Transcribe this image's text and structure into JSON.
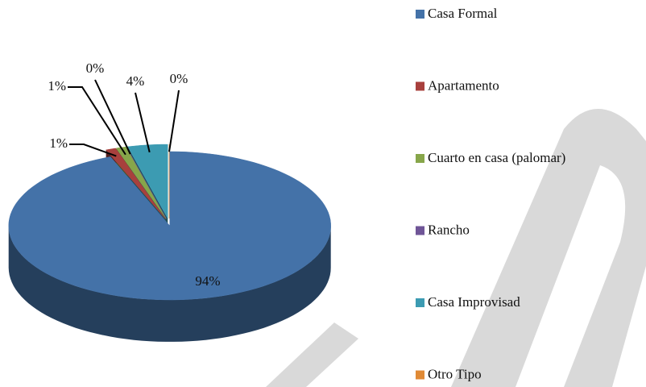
{
  "chart_data": {
    "type": "pie",
    "series": [
      {
        "name": "Casa Formal",
        "color": "#4472a8",
        "values": [
          94
        ],
        "value_labels": [
          "94%"
        ]
      },
      {
        "name": "Apartamento",
        "color": "#a8403d",
        "values": [
          1
        ],
        "value_labels": [
          "1%"
        ]
      },
      {
        "name": "Cuarto en casa (palomar)",
        "color": "#87a64a",
        "values": [
          1
        ],
        "value_labels": [
          "1%"
        ]
      },
      {
        "name": "Rancho",
        "color": "#6f5597",
        "values": [
          0
        ],
        "value_labels": [
          "0%"
        ]
      },
      {
        "name": "Casa Improvisad",
        "color": "#3c9bb2",
        "values": [
          4
        ],
        "value_labels": [
          "4%"
        ]
      },
      {
        "name": "Otro Tipo",
        "color": "#e08a35",
        "values": [
          0
        ],
        "value_labels": [
          "0%"
        ]
      }
    ]
  }
}
